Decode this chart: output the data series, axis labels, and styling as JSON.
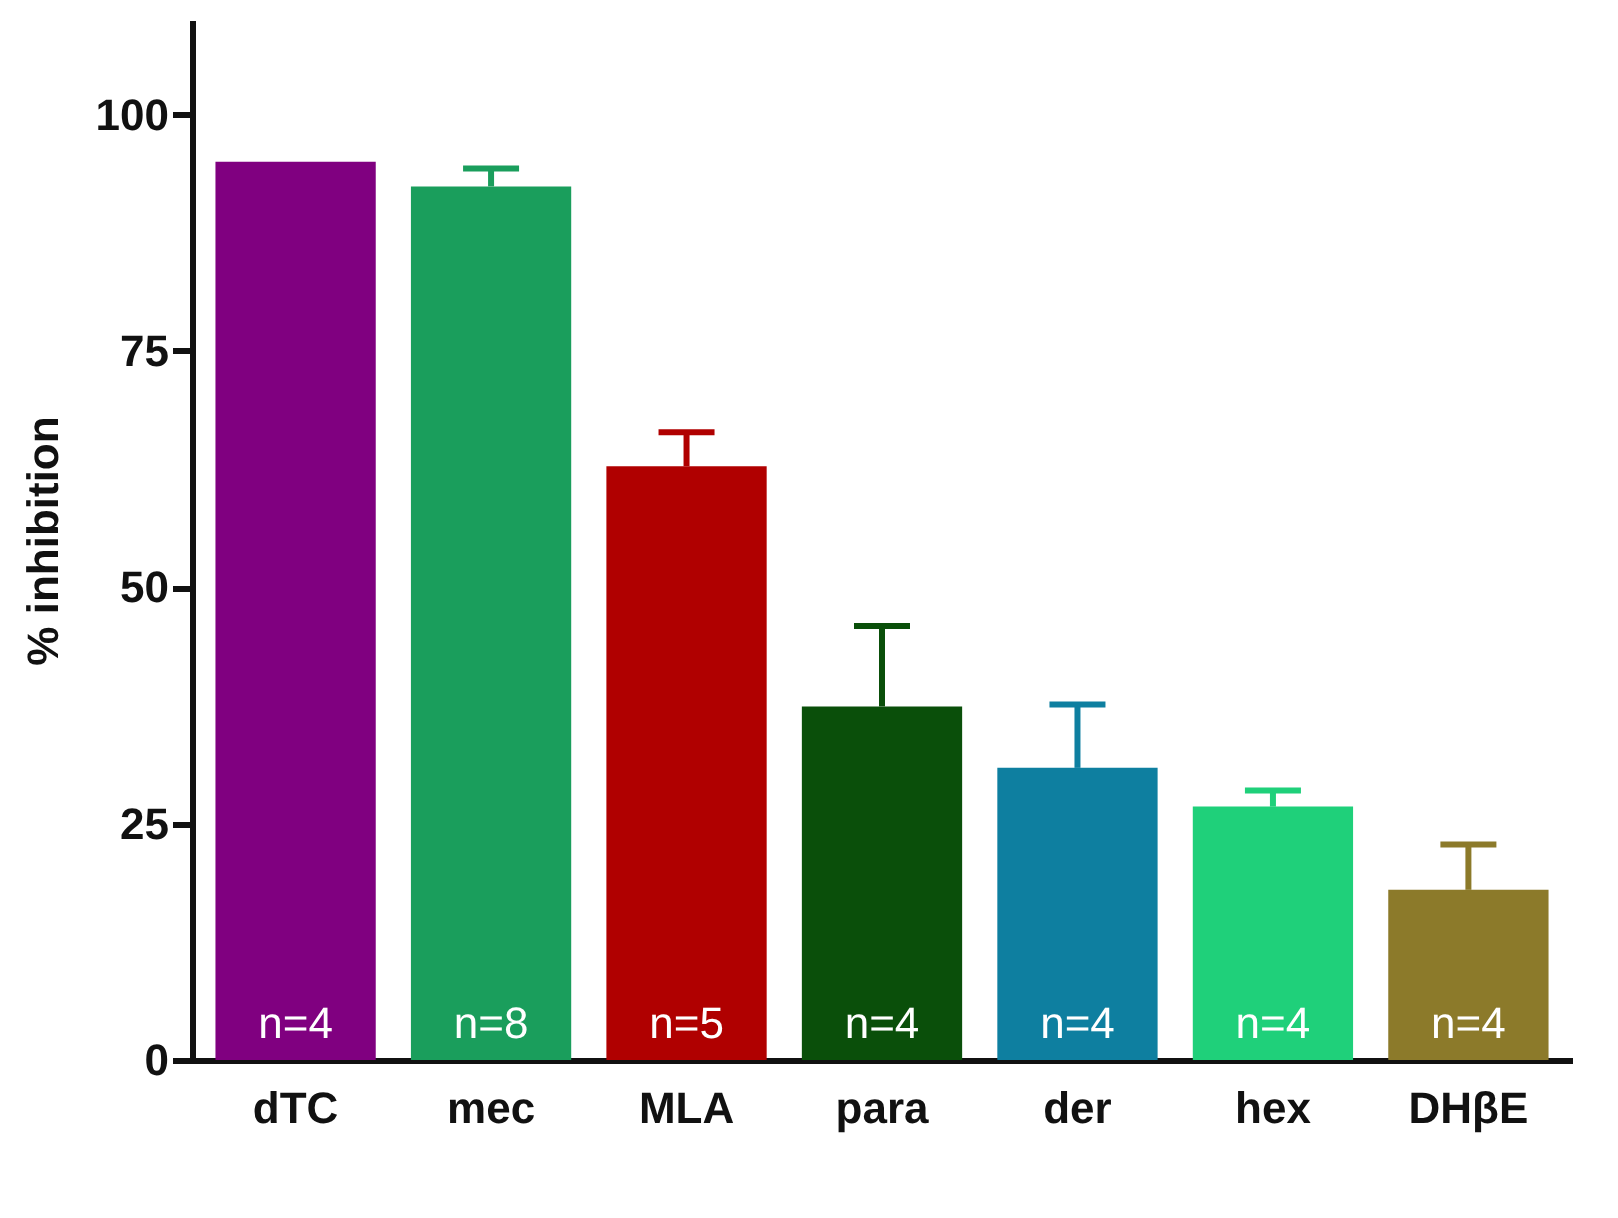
{
  "chart_data": {
    "type": "bar",
    "ylabel": "% inhibition",
    "categories": [
      "dTC",
      "mec",
      "MLA",
      "para",
      "der",
      "hex",
      "DHβE"
    ],
    "values": [
      95,
      92.4,
      62.8,
      37.4,
      30.9,
      26.8,
      18
    ],
    "colors": [
      "#800080",
      "#1a9e5c",
      "#b00000",
      "#0a4f0a",
      "#0e7fa0",
      "#1fd07a",
      "#8c7a2a"
    ],
    "errors": [
      null,
      [
        92.4,
        94.3
      ],
      [
        62.8,
        66.4
      ],
      [
        37.4,
        45.9
      ],
      [
        30.9,
        37.6
      ],
      [
        26.8,
        28.5
      ],
      [
        18,
        22.8
      ]
    ],
    "ylim": [
      0,
      110
    ],
    "yticks": [
      0,
      25,
      50,
      75,
      100
    ],
    "grid": false,
    "legend": false,
    "annotations": [
      "n=4",
      "n=8",
      "n=5",
      "n=4",
      "n=4",
      "n=4",
      "n=4"
    ]
  }
}
